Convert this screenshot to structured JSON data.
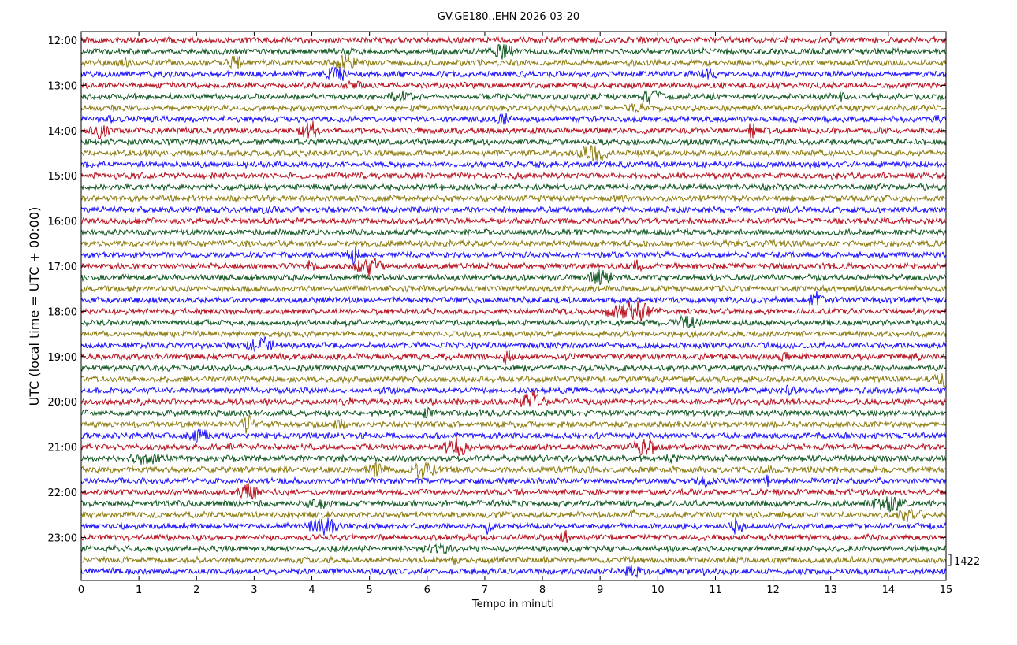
{
  "chart_data": {
    "type": "line",
    "title": "GV.GE180..EHN 2026-03-20",
    "xlabel": "Tempo in minuti",
    "ylabel": "UTC (local time = UTC + 00:00)",
    "xlim": [
      0,
      15
    ],
    "x_ticks": [
      "0",
      "1",
      "2",
      "3",
      "4",
      "5",
      "6",
      "7",
      "8",
      "9",
      "10",
      "11",
      "12",
      "13",
      "14",
      "15"
    ],
    "y_ticks": [
      "12:00",
      "13:00",
      "14:00",
      "15:00",
      "16:00",
      "17:00",
      "18:00",
      "19:00",
      "20:00",
      "21:00",
      "22:00",
      "23:00"
    ],
    "trace_interval_minutes": 15,
    "traces_per_hour": 4,
    "trace_count": 48,
    "series_colors": [
      "#b2000f",
      "#004c12",
      "#847200",
      "#0e01ff"
    ],
    "scale_label": "1422",
    "grid": false
  }
}
